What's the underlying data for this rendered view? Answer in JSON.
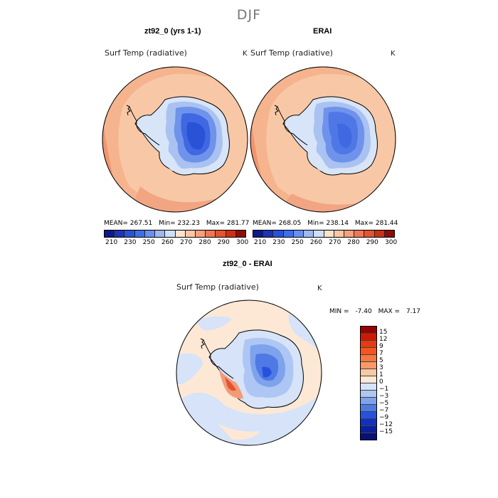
{
  "figure": {
    "season": "DJF"
  },
  "panels": [
    {
      "title": "zt92_0 (yrs 1-1)",
      "variable": "Surf Temp (radiative)",
      "units": "K",
      "stats": {
        "mean": "MEAN= 267.51",
        "min": "Min= 232.23",
        "max": "Max= 281.77"
      }
    },
    {
      "title": "ERAI",
      "variable": "Surf Temp (radiative)",
      "units": "K",
      "stats": {
        "mean": "MEAN= 268.05",
        "min": "Min= 238.14",
        "max": "Max= 281.44"
      }
    }
  ],
  "abs_colorbar": {
    "tick_labels": [
      "210",
      "230",
      "250",
      "260",
      "270",
      "280",
      "290",
      "300"
    ],
    "colors": [
      "#0d1a8c",
      "#1c34b5",
      "#2a52d6",
      "#3f6fe8",
      "#6a90ef",
      "#9fb8f3",
      "#d0dff8",
      "#fde3cf",
      "#fbc6a5",
      "#f7a07d",
      "#f07756",
      "#e4542e",
      "#cc3115",
      "#8e0d06"
    ]
  },
  "diff_panel": {
    "title": "zt92_0 - ERAI",
    "variable": "Surf Temp (radiative)",
    "units": "K",
    "min_label": "MIN =",
    "min_value": "-7.40",
    "max_label": "MAX =",
    "max_value": "7.17"
  },
  "diff_colorbar": {
    "tick_labels": [
      "15",
      "12",
      "9",
      "7",
      "5",
      "3",
      "1",
      "0",
      "−1",
      "−3",
      "−5",
      "−7",
      "−9",
      "−12",
      "−15"
    ],
    "colors": [
      "#990000",
      "#cc1a05",
      "#e63a12",
      "#f2551f",
      "#f7773e",
      "#fa9a6a",
      "#fcc7a4",
      "#fde8d4",
      "#d6e4fa",
      "#aec6f3",
      "#7fa2ec",
      "#4f7ae5",
      "#2752dc",
      "#0f30c2",
      "#0a1f99",
      "#06107a"
    ]
  },
  "map_colors": {
    "ocean_warm": "#f5b48e",
    "ocean_warmer": "#f1956e",
    "ocean_mid": "#f8c8a6",
    "ice_edge": "#d8e4f7",
    "ice_1": "#a9c2f1",
    "ice_2": "#6f93eb",
    "ice_3": "#3f68e2",
    "ice_4": "#2149d6",
    "diff_bg": "#fde8d6",
    "diff_neg_light": "#d6e3f8",
    "diff_pos": "#f39a78"
  }
}
